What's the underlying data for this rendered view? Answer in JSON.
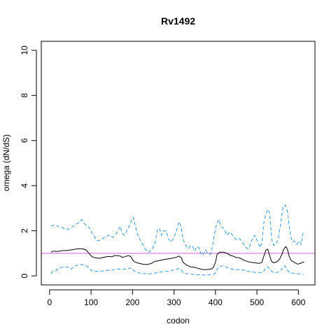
{
  "chart_data": {
    "type": "line",
    "title": "Rv1492",
    "xlabel": "codon",
    "ylabel": "omega (dN/dS)",
    "xlim": [
      -20,
      640
    ],
    "ylim": [
      -0.4,
      10.4
    ],
    "x_ticks": [
      0,
      100,
      200,
      300,
      400,
      500,
      600
    ],
    "y_ticks": [
      0,
      2,
      4,
      6,
      8,
      10
    ],
    "reference_line": {
      "y": 1,
      "color": "#cc66cc"
    },
    "grid": false,
    "legend": "none",
    "series": [
      {
        "role": "upper",
        "color": "#3399dd",
        "style": "dashed",
        "points": [
          [
            3,
            2.2
          ],
          [
            10,
            2.25
          ],
          [
            20,
            2.2
          ],
          [
            30,
            2.15
          ],
          [
            40,
            2.05
          ],
          [
            50,
            2.1
          ],
          [
            60,
            2.25
          ],
          [
            70,
            2.35
          ],
          [
            78,
            2.5
          ],
          [
            85,
            2.3
          ],
          [
            92,
            2.2
          ],
          [
            97,
            2.1
          ],
          [
            102,
            1.9
          ],
          [
            108,
            1.75
          ],
          [
            115,
            1.55
          ],
          [
            125,
            1.6
          ],
          [
            135,
            1.75
          ],
          [
            145,
            1.8
          ],
          [
            152,
            1.7
          ],
          [
            158,
            1.8
          ],
          [
            165,
            2.0
          ],
          [
            170,
            2.2
          ],
          [
            175,
            1.9
          ],
          [
            180,
            1.8
          ],
          [
            185,
            1.95
          ],
          [
            192,
            2.2
          ],
          [
            198,
            2.5
          ],
          [
            202,
            2.6
          ],
          [
            207,
            2.2
          ],
          [
            212,
            1.85
          ],
          [
            218,
            1.6
          ],
          [
            225,
            1.4
          ],
          [
            232,
            1.15
          ],
          [
            240,
            1.05
          ],
          [
            248,
            1.2
          ],
          [
            255,
            1.5
          ],
          [
            260,
            2.05
          ],
          [
            265,
            2.1
          ],
          [
            270,
            1.8
          ],
          [
            275,
            2.0
          ],
          [
            281,
            2.0
          ],
          [
            286,
            1.65
          ],
          [
            293,
            1.5
          ],
          [
            300,
            1.7
          ],
          [
            306,
            2.0
          ],
          [
            312,
            2.4
          ],
          [
            317,
            2.2
          ],
          [
            322,
            1.6
          ],
          [
            328,
            1.35
          ],
          [
            335,
            1.2
          ],
          [
            340,
            1.35
          ],
          [
            345,
            1.3
          ],
          [
            350,
            1.1
          ],
          [
            355,
            1.3
          ],
          [
            360,
            1.25
          ],
          [
            365,
            1.0
          ],
          [
            370,
            0.9
          ],
          [
            376,
            1.15
          ],
          [
            382,
            1.0
          ],
          [
            388,
            0.95
          ],
          [
            393,
            1.3
          ],
          [
            398,
            1.9
          ],
          [
            403,
            2.3
          ],
          [
            408,
            2.5
          ],
          [
            413,
            2.2
          ],
          [
            420,
            2.1
          ],
          [
            428,
            1.8
          ],
          [
            435,
            1.95
          ],
          [
            443,
            1.75
          ],
          [
            450,
            1.6
          ],
          [
            458,
            1.65
          ],
          [
            465,
            1.5
          ],
          [
            473,
            1.25
          ],
          [
            480,
            1.2
          ],
          [
            488,
            1.6
          ],
          [
            495,
            1.8
          ],
          [
            502,
            1.5
          ],
          [
            508,
            1.25
          ],
          [
            512,
            1.5
          ],
          [
            517,
            2.4
          ],
          [
            522,
            2.8
          ],
          [
            527,
            2.95
          ],
          [
            531,
            2.7
          ],
          [
            536,
            1.6
          ],
          [
            540,
            1.35
          ],
          [
            546,
            1.4
          ],
          [
            552,
            1.7
          ],
          [
            558,
            2.4
          ],
          [
            563,
            3.05
          ],
          [
            568,
            3.15
          ],
          [
            573,
            2.9
          ],
          [
            578,
            2.2
          ],
          [
            582,
            1.7
          ],
          [
            586,
            1.5
          ],
          [
            590,
            1.55
          ],
          [
            596,
            1.4
          ],
          [
            602,
            1.55
          ],
          [
            607,
            1.4
          ],
          [
            612,
            2.0
          ]
        ]
      },
      {
        "role": "estimate",
        "color": "#000000",
        "style": "solid",
        "points": [
          [
            3,
            1.05
          ],
          [
            10,
            1.1
          ],
          [
            20,
            1.08
          ],
          [
            30,
            1.12
          ],
          [
            40,
            1.12
          ],
          [
            50,
            1.15
          ],
          [
            60,
            1.18
          ],
          [
            70,
            1.2
          ],
          [
            80,
            1.2
          ],
          [
            88,
            1.15
          ],
          [
            95,
            1.0
          ],
          [
            102,
            0.85
          ],
          [
            110,
            0.8
          ],
          [
            120,
            0.78
          ],
          [
            130,
            0.82
          ],
          [
            140,
            0.86
          ],
          [
            150,
            0.85
          ],
          [
            157,
            0.9
          ],
          [
            162,
            0.9
          ],
          [
            170,
            0.88
          ],
          [
            175,
            0.82
          ],
          [
            182,
            0.85
          ],
          [
            190,
            0.9
          ],
          [
            196,
            0.85
          ],
          [
            200,
            0.72
          ],
          [
            205,
            0.62
          ],
          [
            215,
            0.56
          ],
          [
            225,
            0.52
          ],
          [
            235,
            0.5
          ],
          [
            245,
            0.55
          ],
          [
            255,
            0.65
          ],
          [
            265,
            0.68
          ],
          [
            275,
            0.72
          ],
          [
            285,
            0.75
          ],
          [
            295,
            0.78
          ],
          [
            305,
            0.82
          ],
          [
            312,
            0.88
          ],
          [
            318,
            0.8
          ],
          [
            322,
            0.6
          ],
          [
            330,
            0.48
          ],
          [
            340,
            0.4
          ],
          [
            350,
            0.38
          ],
          [
            360,
            0.32
          ],
          [
            370,
            0.28
          ],
          [
            380,
            0.28
          ],
          [
            390,
            0.3
          ],
          [
            395,
            0.38
          ],
          [
            400,
            0.6
          ],
          [
            404,
            0.95
          ],
          [
            410,
            1.05
          ],
          [
            420,
            1.05
          ],
          [
            428,
            1.0
          ],
          [
            435,
            0.92
          ],
          [
            442,
            0.88
          ],
          [
            450,
            0.82
          ],
          [
            458,
            0.8
          ],
          [
            466,
            0.72
          ],
          [
            475,
            0.65
          ],
          [
            485,
            0.6
          ],
          [
            495,
            0.58
          ],
          [
            505,
            0.55
          ],
          [
            512,
            0.6
          ],
          [
            517,
            0.9
          ],
          [
            522,
            1.15
          ],
          [
            526,
            1.18
          ],
          [
            530,
            0.95
          ],
          [
            535,
            0.65
          ],
          [
            540,
            0.58
          ],
          [
            548,
            0.62
          ],
          [
            555,
            0.75
          ],
          [
            560,
            0.95
          ],
          [
            565,
            1.2
          ],
          [
            570,
            1.3
          ],
          [
            574,
            1.15
          ],
          [
            578,
            0.85
          ],
          [
            583,
            0.68
          ],
          [
            590,
            0.6
          ],
          [
            598,
            0.52
          ],
          [
            604,
            0.55
          ],
          [
            610,
            0.6
          ],
          [
            614,
            0.6
          ]
        ]
      },
      {
        "role": "lower",
        "color": "#3399dd",
        "style": "dashed",
        "points": [
          [
            3,
            0.1
          ],
          [
            8,
            0.2
          ],
          [
            15,
            0.22
          ],
          [
            22,
            0.35
          ],
          [
            30,
            0.38
          ],
          [
            38,
            0.4
          ],
          [
            46,
            0.38
          ],
          [
            52,
            0.3
          ],
          [
            60,
            0.42
          ],
          [
            70,
            0.5
          ],
          [
            80,
            0.5
          ],
          [
            88,
            0.45
          ],
          [
            95,
            0.35
          ],
          [
            102,
            0.22
          ],
          [
            110,
            0.2
          ],
          [
            120,
            0.2
          ],
          [
            130,
            0.22
          ],
          [
            140,
            0.25
          ],
          [
            150,
            0.25
          ],
          [
            160,
            0.3
          ],
          [
            170,
            0.3
          ],
          [
            180,
            0.3
          ],
          [
            190,
            0.32
          ],
          [
            198,
            0.35
          ],
          [
            205,
            0.2
          ],
          [
            212,
            0.15
          ],
          [
            222,
            0.1
          ],
          [
            232,
            0.1
          ],
          [
            240,
            0.08
          ],
          [
            250,
            0.12
          ],
          [
            260,
            0.14
          ],
          [
            270,
            0.18
          ],
          [
            280,
            0.2
          ],
          [
            290,
            0.22
          ],
          [
            300,
            0.26
          ],
          [
            310,
            0.32
          ],
          [
            316,
            0.3
          ],
          [
            322,
            0.15
          ],
          [
            330,
            0.1
          ],
          [
            340,
            0.08
          ],
          [
            350,
            0.06
          ],
          [
            360,
            0.05
          ],
          [
            370,
            0.04
          ],
          [
            380,
            0.04
          ],
          [
            390,
            0.05
          ],
          [
            398,
            0.08
          ],
          [
            404,
            0.3
          ],
          [
            410,
            0.42
          ],
          [
            420,
            0.45
          ],
          [
            430,
            0.35
          ],
          [
            440,
            0.3
          ],
          [
            450,
            0.28
          ],
          [
            460,
            0.28
          ],
          [
            470,
            0.25
          ],
          [
            480,
            0.2
          ],
          [
            490,
            0.17
          ],
          [
            500,
            0.15
          ],
          [
            510,
            0.15
          ],
          [
            516,
            0.2
          ],
          [
            522,
            0.35
          ],
          [
            527,
            0.4
          ],
          [
            532,
            0.25
          ],
          [
            540,
            0.15
          ],
          [
            548,
            0.15
          ],
          [
            556,
            0.2
          ],
          [
            562,
            0.35
          ],
          [
            567,
            0.45
          ],
          [
            572,
            0.3
          ],
          [
            578,
            0.15
          ],
          [
            586,
            0.12
          ],
          [
            596,
            0.1
          ],
          [
            606,
            0.08
          ],
          [
            612,
            0.06
          ]
        ]
      }
    ]
  }
}
